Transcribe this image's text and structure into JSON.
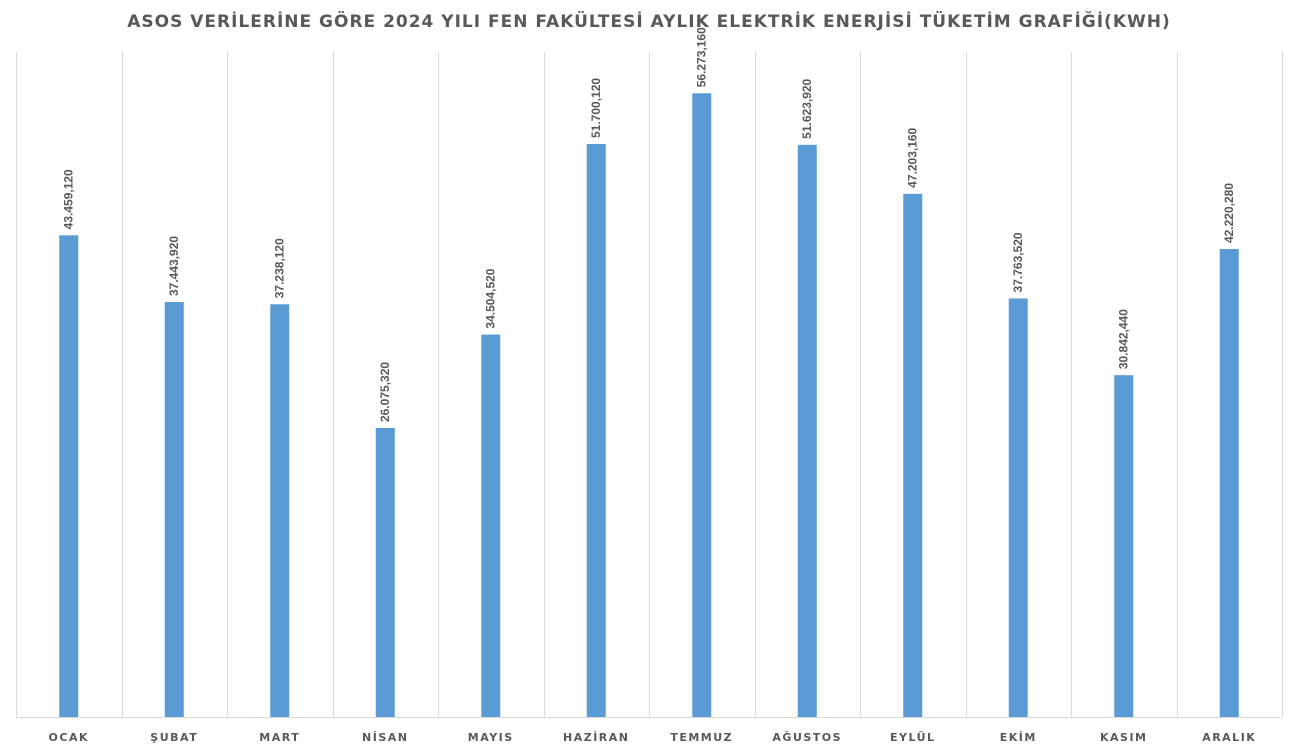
{
  "chart_data": {
    "type": "bar",
    "title": "ASOS VERİLERİNE GÖRE 2024 YILI FEN FAKÜLTESİ AYLIK ELEKTRİK ENERJİSİ TÜKETİM GRAFİĞİ(KWH)",
    "xlabel": "",
    "ylabel": "",
    "categories": [
      "OCAK",
      "ŞUBAT",
      "MART",
      "NİSAN",
      "MAYIS",
      "HAZİRAN",
      "TEMMUZ",
      "AĞUSTOS",
      "EYLÜL",
      "EKİM",
      "KASIM",
      "ARALIK"
    ],
    "values": [
      43459.12,
      37443.92,
      37238.12,
      26075.32,
      34504.52,
      51700.12,
      56273.16,
      51623.92,
      47203.16,
      37763.52,
      30842.44,
      42220.28
    ],
    "data_labels": [
      "43.459,120",
      "37.443,920",
      "37.238,120",
      "26.075,320",
      "34.504,520",
      "51.700,120",
      "56.273,160",
      "51.623,920",
      "47.203,160",
      "37.763,520",
      "30.842,440",
      "42.220,280"
    ],
    "ylim": [
      0,
      60000
    ],
    "grid": "vertical",
    "legend": "none",
    "colors": {
      "bar": "#5b9bd5",
      "grid": "#d9d9d9",
      "text": "#595959"
    }
  }
}
